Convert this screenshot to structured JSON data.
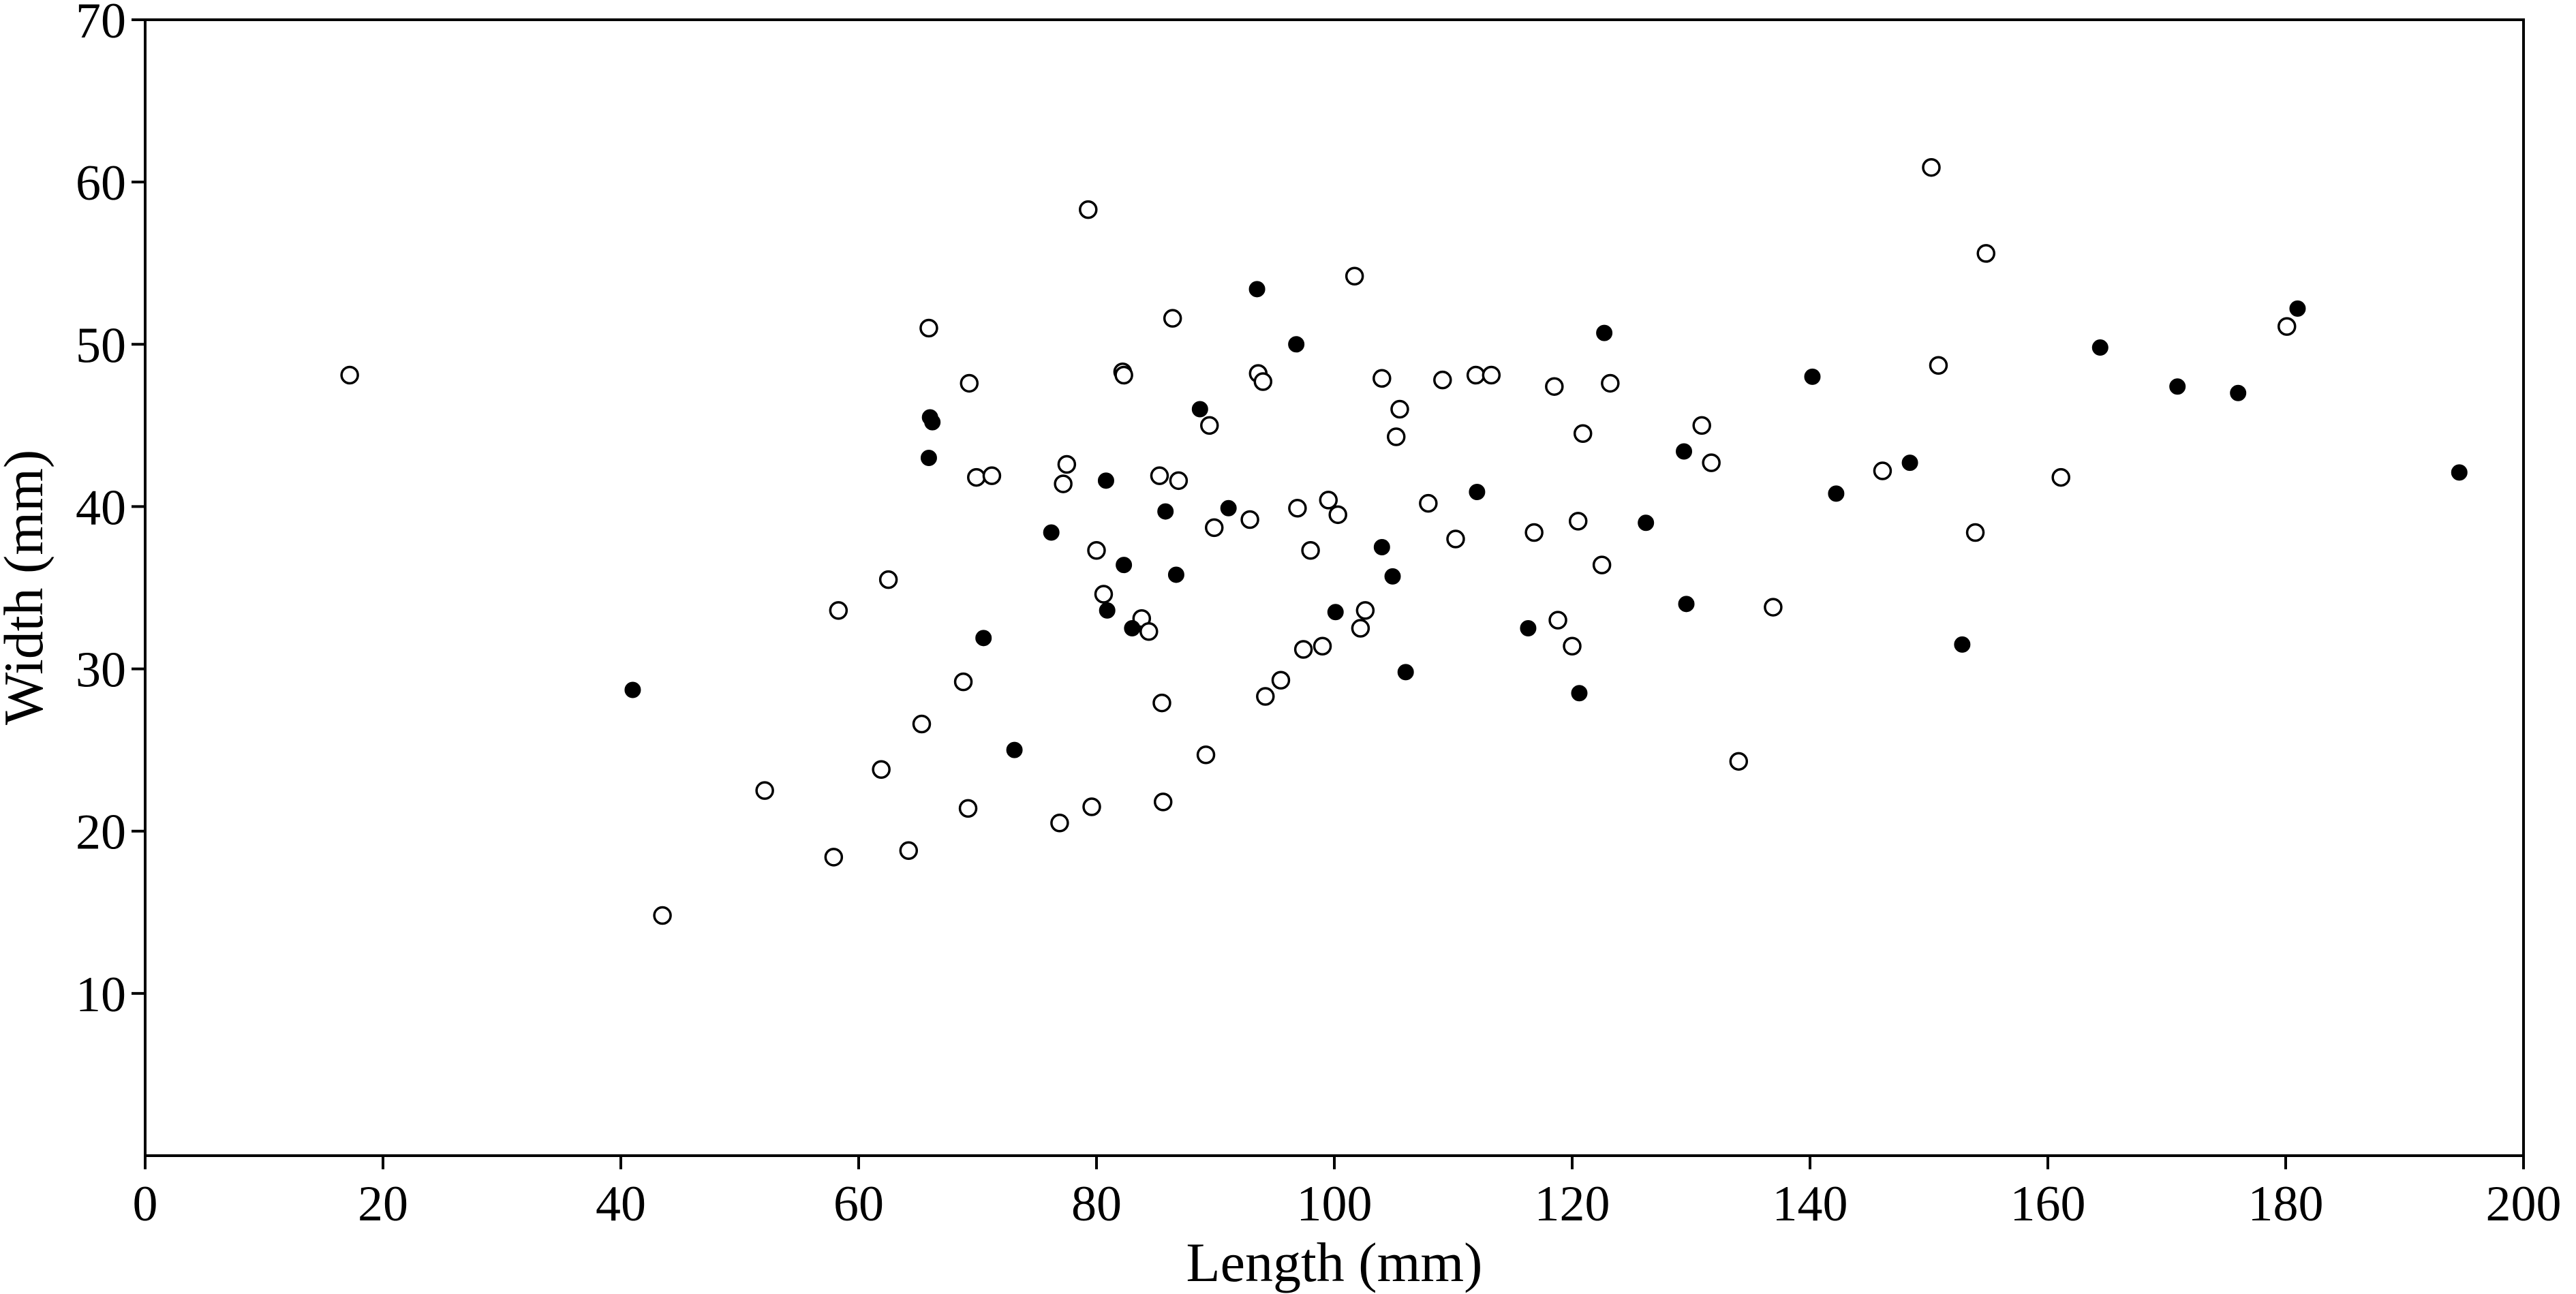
{
  "chart_data": {
    "type": "scatter",
    "title": "",
    "xlabel": "Length (mm)",
    "ylabel": "Width (mm)",
    "xlim": [
      0,
      200
    ],
    "ylim": [
      0,
      70
    ],
    "xticks": [
      0,
      20,
      40,
      60,
      80,
      100,
      120,
      140,
      160,
      180,
      200
    ],
    "yticks": [
      10,
      20,
      30,
      40,
      50,
      60,
      70
    ],
    "grid": false,
    "legend": "none",
    "colors": {
      "filled": "#000000",
      "open_fill": "#ffffff",
      "stroke": "#000000"
    },
    "series": [
      {
        "marker": "open-circle",
        "points": [
          [
            17.2,
            48.1
          ],
          [
            43.5,
            14.8
          ],
          [
            52.1,
            22.5
          ],
          [
            57.9,
            18.4
          ],
          [
            58.3,
            33.6
          ],
          [
            61.9,
            23.8
          ],
          [
            62.5,
            35.5
          ],
          [
            64.2,
            18.8
          ],
          [
            65.3,
            26.6
          ],
          [
            65.9,
            51.0
          ],
          [
            68.8,
            29.2
          ],
          [
            69.2,
            21.4
          ],
          [
            69.3,
            47.6
          ],
          [
            69.9,
            41.8
          ],
          [
            71.2,
            41.9
          ],
          [
            76.9,
            20.5
          ],
          [
            77.2,
            41.4
          ],
          [
            77.5,
            42.6
          ],
          [
            79.3,
            58.3
          ],
          [
            79.6,
            21.5
          ],
          [
            80.0,
            37.3
          ],
          [
            80.6,
            34.6
          ],
          [
            82.2,
            48.3
          ],
          [
            82.3,
            48.1
          ],
          [
            83.8,
            33.1
          ],
          [
            84.4,
            32.3
          ],
          [
            85.3,
            41.9
          ],
          [
            85.5,
            27.9
          ],
          [
            85.6,
            21.8
          ],
          [
            86.4,
            51.6
          ],
          [
            86.9,
            41.6
          ],
          [
            89.2,
            24.7
          ],
          [
            89.5,
            45.0
          ],
          [
            89.9,
            38.7
          ],
          [
            92.9,
            39.2
          ],
          [
            93.6,
            48.2
          ],
          [
            94.0,
            47.7
          ],
          [
            94.2,
            28.3
          ],
          [
            95.5,
            29.3
          ],
          [
            96.9,
            39.9
          ],
          [
            97.4,
            31.2
          ],
          [
            98.0,
            37.3
          ],
          [
            99.0,
            31.4
          ],
          [
            99.5,
            40.4
          ],
          [
            100.3,
            39.5
          ],
          [
            101.7,
            54.2
          ],
          [
            102.2,
            32.5
          ],
          [
            102.6,
            33.6
          ],
          [
            104.0,
            47.9
          ],
          [
            105.2,
            44.3
          ],
          [
            105.5,
            46.0
          ],
          [
            107.9,
            40.2
          ],
          [
            109.1,
            47.8
          ],
          [
            110.2,
            38.0
          ],
          [
            111.9,
            48.1
          ],
          [
            113.2,
            48.1
          ],
          [
            116.8,
            38.4
          ],
          [
            118.5,
            47.4
          ],
          [
            118.8,
            33.0
          ],
          [
            120.0,
            31.4
          ],
          [
            120.5,
            39.1
          ],
          [
            120.9,
            44.5
          ],
          [
            122.5,
            36.4
          ],
          [
            123.2,
            47.6
          ],
          [
            130.9,
            45.0
          ],
          [
            131.7,
            42.7
          ],
          [
            134.0,
            24.3
          ],
          [
            136.9,
            33.8
          ],
          [
            146.1,
            42.2
          ],
          [
            150.2,
            60.9
          ],
          [
            150.8,
            48.7
          ],
          [
            153.9,
            38.4
          ],
          [
            154.8,
            55.6
          ],
          [
            161.1,
            41.8
          ],
          [
            180.1,
            51.1
          ]
        ]
      },
      {
        "marker": "filled-circle",
        "points": [
          [
            41.0,
            28.7
          ],
          [
            66.0,
            45.5
          ],
          [
            66.2,
            45.2
          ],
          [
            65.9,
            43.0
          ],
          [
            70.5,
            31.9
          ],
          [
            73.1,
            25.0
          ],
          [
            76.2,
            38.4
          ],
          [
            80.8,
            41.6
          ],
          [
            80.9,
            33.6
          ],
          [
            82.3,
            36.4
          ],
          [
            83.0,
            32.5
          ],
          [
            85.8,
            39.7
          ],
          [
            86.7,
            35.8
          ],
          [
            88.7,
            46.0
          ],
          [
            91.1,
            39.9
          ],
          [
            93.5,
            53.4
          ],
          [
            96.8,
            50.0
          ],
          [
            100.1,
            33.5
          ],
          [
            104.0,
            37.5
          ],
          [
            104.9,
            35.7
          ],
          [
            106.0,
            29.8
          ],
          [
            112.0,
            40.9
          ],
          [
            116.3,
            32.5
          ],
          [
            120.6,
            28.5
          ],
          [
            122.7,
            50.7
          ],
          [
            126.2,
            39.0
          ],
          [
            129.4,
            43.4
          ],
          [
            129.6,
            34.0
          ],
          [
            140.2,
            48.0
          ],
          [
            142.2,
            40.8
          ],
          [
            148.4,
            42.7
          ],
          [
            152.8,
            31.5
          ],
          [
            164.4,
            49.8
          ],
          [
            170.9,
            47.4
          ],
          [
            176.0,
            47.0
          ],
          [
            181.0,
            52.2
          ],
          [
            194.6,
            42.1
          ]
        ]
      }
    ]
  }
}
